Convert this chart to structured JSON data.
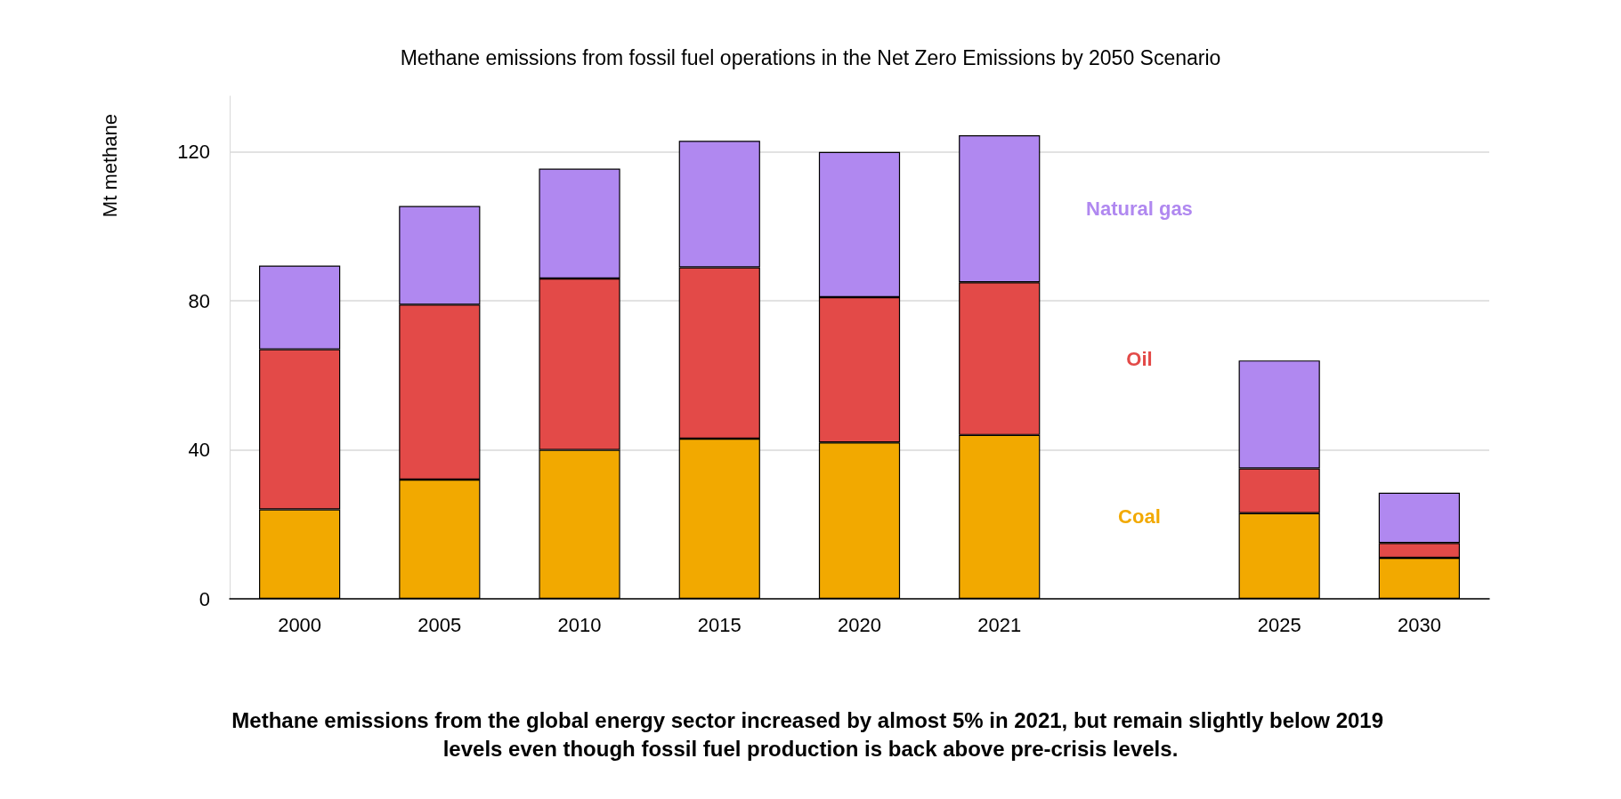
{
  "chart_data": {
    "type": "bar",
    "title": "Methane emissions from fossil fuel operations in the Net Zero Emissions by 2050 Scenario",
    "ylabel": "Mt methane",
    "categories": [
      "2000",
      "2005",
      "2010",
      "2015",
      "2020",
      "2021",
      null,
      "2025",
      "2030"
    ],
    "stacked": true,
    "series": [
      {
        "name": "Coal",
        "color": "#f2a900",
        "values": [
          24,
          32,
          40,
          43,
          42,
          44,
          null,
          23,
          11
        ]
      },
      {
        "name": "Oil",
        "color": "#e34a48",
        "values": [
          43,
          47,
          46,
          46,
          39,
          41,
          null,
          12,
          4
        ]
      },
      {
        "name": "Natural gas",
        "color": "#b088f0",
        "values": [
          22.5,
          26.5,
          29.5,
          34,
          39,
          39.5,
          null,
          29,
          13.5
        ]
      }
    ],
    "ylim": [
      0,
      135
    ],
    "yticks": [
      0,
      40,
      80,
      120
    ],
    "grid": "y",
    "legend": false,
    "annotations": [
      "Methane emissions from the global energy sector increased by almost 5% in 2021, but remain slightly below 2019 levels even though fossil fuel production is back above pre-crisis levels."
    ]
  }
}
